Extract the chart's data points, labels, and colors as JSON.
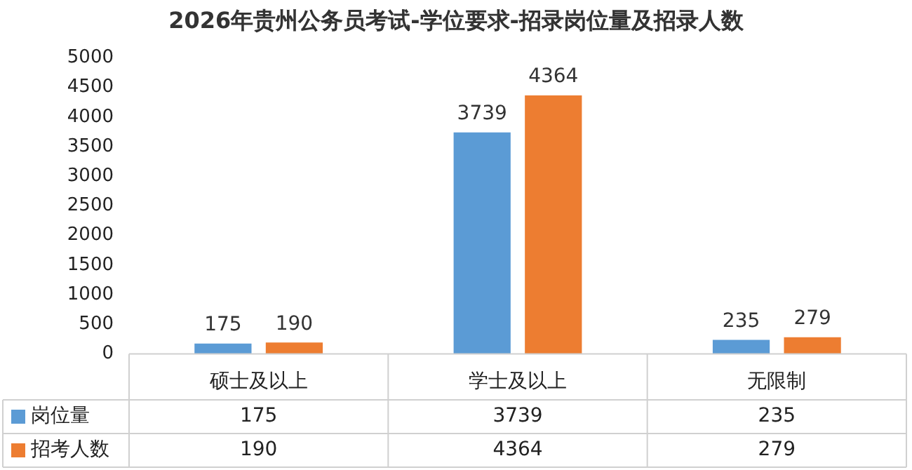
{
  "chart_data": {
    "type": "bar",
    "title": "2026年贵州公务员考试-学位要求-招录岗位量及招录人数",
    "categories": [
      "硕士及以上",
      "学士及以上",
      "无限制"
    ],
    "series": [
      {
        "name": "岗位量",
        "color": "#5b9bd5",
        "values": [
          175,
          3739,
          235
        ],
        "value_labels": [
          "175",
          "3739",
          "235"
        ]
      },
      {
        "name": "招考人数",
        "color": "#ed7d31",
        "values": [
          190,
          4364,
          279
        ],
        "value_labels": [
          "190",
          "4364",
          "279"
        ]
      }
    ],
    "legend": "bottom left",
    "ylim": [
      0,
      5000
    ],
    "yticks": [
      0,
      500,
      1000,
      1500,
      2000,
      2500,
      3000,
      3500,
      4000,
      4500,
      5000
    ],
    "annotations": [
      "175",
      "3739",
      "235",
      "190",
      "4364",
      "279"
    ]
  }
}
